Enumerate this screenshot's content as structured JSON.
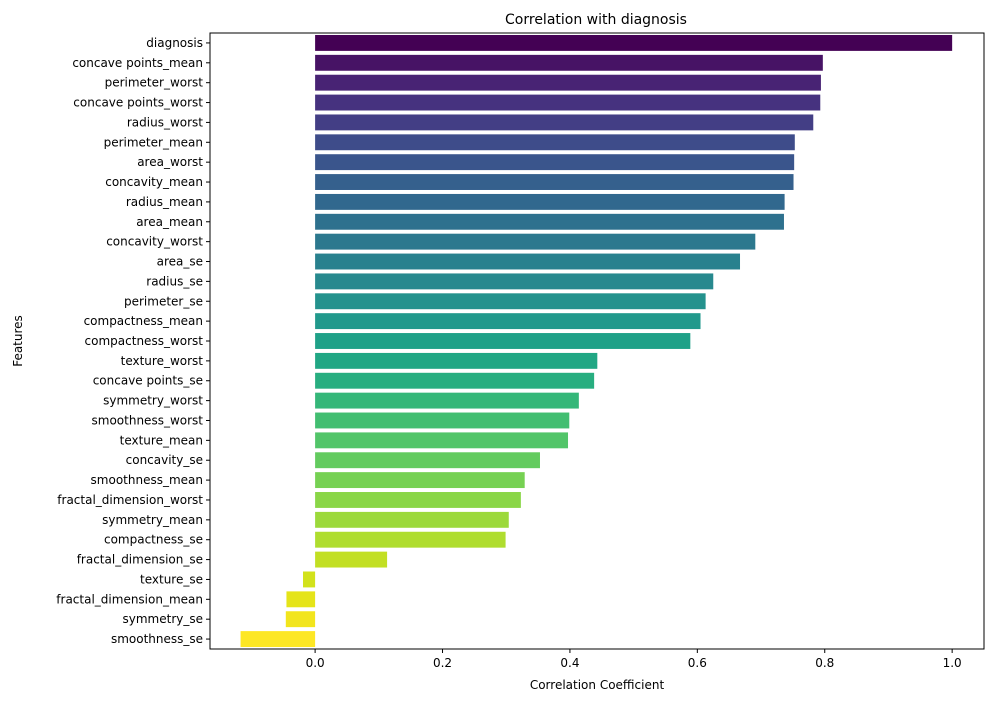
{
  "chart_data": {
    "type": "bar",
    "orientation": "horizontal",
    "title": "Correlation with diagnosis",
    "xlabel": "Correlation Coefficient",
    "ylabel": "Features",
    "xlim": [
      -0.165,
      1.05
    ],
    "xticks": [
      0.0,
      0.2,
      0.4,
      0.6,
      0.8,
      1.0
    ],
    "xtick_labels": [
      "0.0",
      "0.2",
      "0.4",
      "0.6",
      "0.8",
      "1.0"
    ],
    "grid": false,
    "legend": "none",
    "palette": "viridis",
    "categories": [
      "diagnosis",
      "concave points_mean",
      "perimeter_worst",
      "concave points_worst",
      "radius_worst",
      "perimeter_mean",
      "area_worst",
      "concavity_mean",
      "radius_mean",
      "area_mean",
      "concavity_worst",
      "area_se",
      "radius_se",
      "perimeter_se",
      "compactness_mean",
      "compactness_worst",
      "texture_worst",
      "concave points_se",
      "symmetry_worst",
      "smoothness_worst",
      "texture_mean",
      "concavity_se",
      "smoothness_mean",
      "fractal_dimension_worst",
      "symmetry_mean",
      "compactness_se",
      "fractal_dimension_se",
      "texture_se",
      "fractal_dimension_mean",
      "symmetry_se",
      "smoothness_se"
    ],
    "values": [
      1.0,
      0.797,
      0.794,
      0.793,
      0.782,
      0.753,
      0.752,
      0.751,
      0.737,
      0.736,
      0.691,
      0.667,
      0.625,
      0.613,
      0.605,
      0.589,
      0.443,
      0.438,
      0.414,
      0.399,
      0.397,
      0.353,
      0.329,
      0.323,
      0.304,
      0.299,
      0.113,
      -0.019,
      -0.045,
      -0.046,
      -0.117
    ],
    "colors": [
      "#440154",
      "#471365",
      "#482374",
      "#46327f",
      "#433e85",
      "#3e4c8a",
      "#3a558c",
      "#35608d",
      "#31688e",
      "#2e718e",
      "#2c788e",
      "#29818e",
      "#27898e",
      "#24928d",
      "#21998c",
      "#1fa188",
      "#21a784",
      "#28ae80",
      "#35b779",
      "#42be71",
      "#52c569",
      "#63cb5f",
      "#76d153",
      "#8ad647",
      "#9cd93b",
      "#afdd2f",
      "#c2df23",
      "#d2e21b",
      "#e5e419",
      "#f2e51d",
      "#fde725"
    ]
  }
}
